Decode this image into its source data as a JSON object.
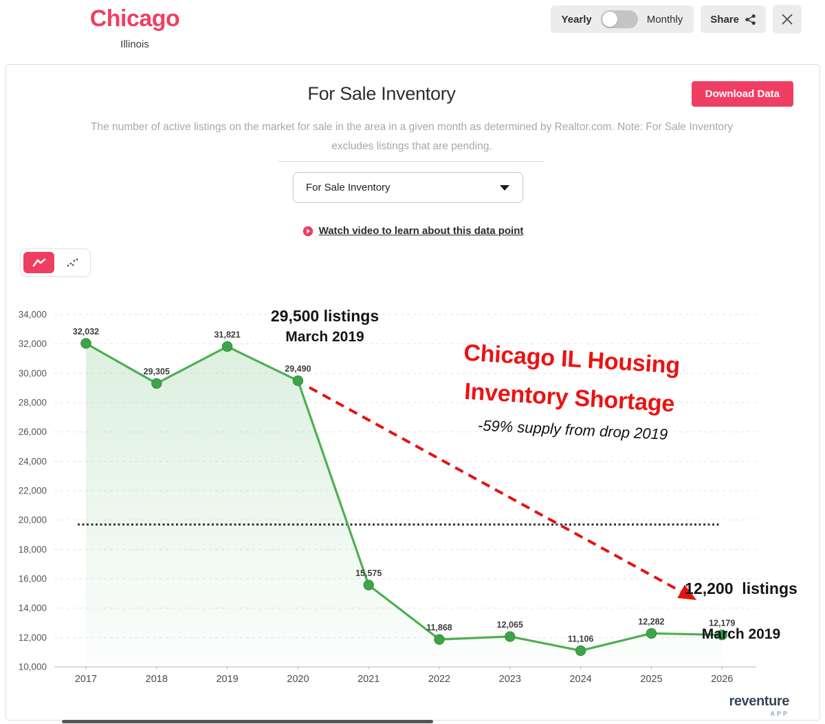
{
  "header": {
    "city": "Chicago",
    "state": "Illinois",
    "frequency_toggle": {
      "left_label": "Yearly",
      "right_label": "Monthly",
      "selected": "Yearly"
    },
    "share_label": "Share"
  },
  "panel": {
    "title": "For Sale Inventory",
    "download_button": "Download Data",
    "description": "The number of active listings on the market for sale in the area in a given month as determined by Realtor.com. Note: For Sale Inventory excludes listings that are pending.",
    "metric_dropdown_value": "For Sale Inventory",
    "video_link": "Watch video to learn about this data point",
    "chart_type_toggle": {
      "active": "line",
      "options": [
        "line",
        "scatter"
      ]
    }
  },
  "chart_data": {
    "type": "line",
    "title": "For Sale Inventory — Chicago, Illinois",
    "categories": [
      "2017",
      "2018",
      "2019",
      "2020",
      "2021",
      "2022",
      "2023",
      "2024",
      "2025",
      "2026"
    ],
    "values": [
      32032,
      29305,
      31821,
      29490,
      15575,
      11868,
      12065,
      11106,
      12282,
      12179
    ],
    "point_labels": [
      "32,032",
      "29,305",
      "31,821",
      "29,490",
      "15,575",
      "11,868",
      "12,065",
      "11,106",
      "12,282",
      "12,179"
    ],
    "ylim": [
      10000,
      34000
    ],
    "ytick_step": 2000,
    "threshold_value": 19700,
    "grid": true,
    "legend": false,
    "series_color": "#4caf50",
    "area_fill": true
  },
  "annotations": {
    "peak": {
      "line1": "29,500 listings",
      "line2": "March 2019"
    },
    "headline": {
      "line1": "Chicago IL Housing",
      "line2": "Inventory Shortage"
    },
    "subheadline": "-59% supply from drop 2019",
    "trough": {
      "line1": "12,200  listings",
      "line2": "March 2019"
    }
  },
  "branding": {
    "logo_text": "reventure",
    "logo_sub": "APP"
  },
  "colors": {
    "brand_pink": "#f03e63",
    "series_green": "#4caf50",
    "marker_green": "#3fa34c",
    "annotation_red": "#ec1212",
    "threshold_black": "#2f2f2f",
    "chip_gray": "#ececec"
  }
}
